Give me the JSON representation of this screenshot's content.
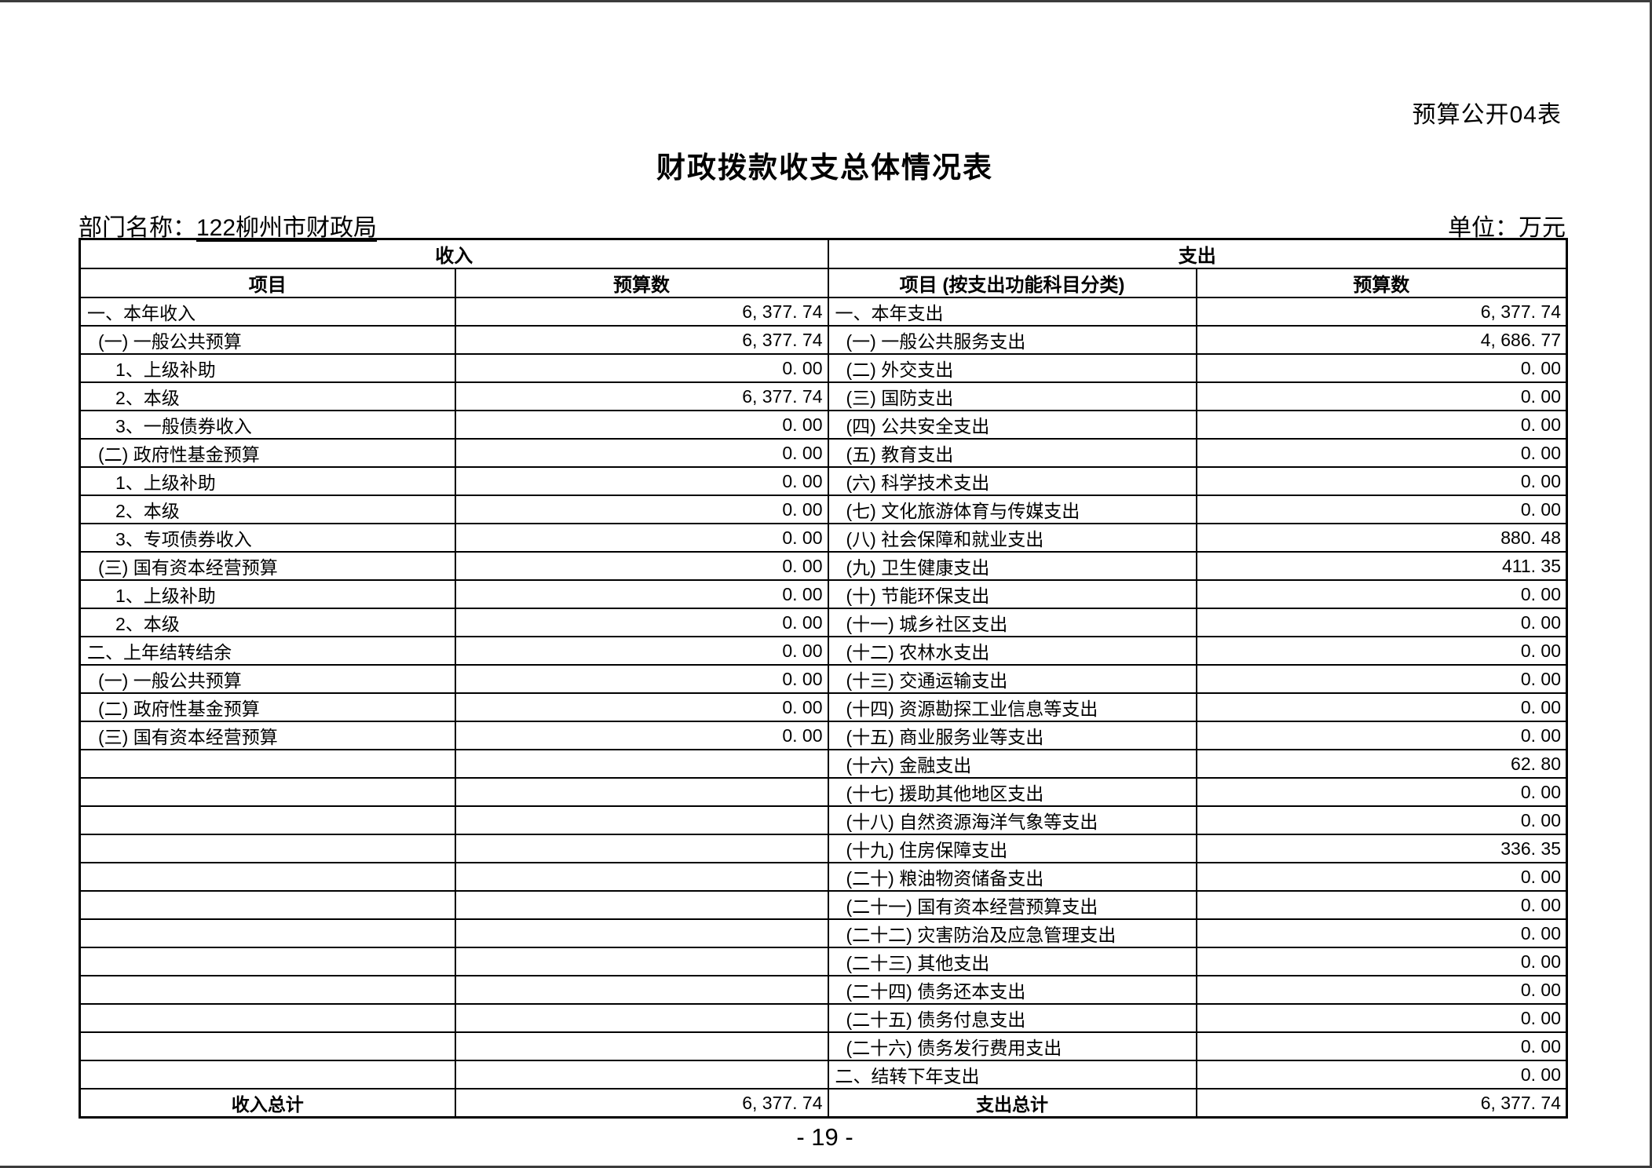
{
  "page": {
    "form_label": "预算公开04表",
    "title": "财政拨款收支总体情况表",
    "department_label": "部门名称：",
    "department_value": "122柳州市财政局",
    "unit_label": "单位：万元",
    "page_number": "- 19 -"
  },
  "table": {
    "income": {
      "section_header": "收入",
      "columns": {
        "item": "项目",
        "budget": "预算数"
      },
      "rows": [
        {
          "label": "一、本年收入",
          "indent": 0,
          "value": "6, 377. 74"
        },
        {
          "label": "(一) 一般公共预算",
          "indent": 1,
          "value": "6, 377. 74"
        },
        {
          "label": "1、上级补助",
          "indent": 2,
          "value": "0. 00"
        },
        {
          "label": "2、本级",
          "indent": 2,
          "value": "6, 377. 74"
        },
        {
          "label": "3、一般债券收入",
          "indent": 2,
          "value": "0. 00"
        },
        {
          "label": "(二) 政府性基金预算",
          "indent": 1,
          "value": "0. 00"
        },
        {
          "label": "1、上级补助",
          "indent": 2,
          "value": "0. 00"
        },
        {
          "label": "2、本级",
          "indent": 2,
          "value": "0. 00"
        },
        {
          "label": "3、专项债券收入",
          "indent": 2,
          "value": "0. 00"
        },
        {
          "label": "(三) 国有资本经营预算",
          "indent": 1,
          "value": "0. 00"
        },
        {
          "label": "1、上级补助",
          "indent": 2,
          "value": "0. 00"
        },
        {
          "label": "2、本级",
          "indent": 2,
          "value": "0. 00"
        },
        {
          "label": "二、上年结转结余",
          "indent": 0,
          "value": "0. 00"
        },
        {
          "label": "(一) 一般公共预算",
          "indent": 1,
          "value": "0. 00"
        },
        {
          "label": "(二) 政府性基金预算",
          "indent": 1,
          "value": "0. 00"
        },
        {
          "label": "(三) 国有资本经营预算",
          "indent": 1,
          "value": "0. 00"
        }
      ],
      "empty_row_count": 12,
      "total": {
        "label": "收入总计",
        "value": "6, 377. 74"
      }
    },
    "expenditure": {
      "section_header": "支出",
      "columns": {
        "item": "项目 (按支出功能科目分类)",
        "budget": "预算数"
      },
      "rows": [
        {
          "label": "一、本年支出",
          "indent": 0,
          "value": "6, 377. 74"
        },
        {
          "label": "(一) 一般公共服务支出",
          "indent": 1,
          "value": "4, 686. 77"
        },
        {
          "label": "(二) 外交支出",
          "indent": 1,
          "value": "0. 00"
        },
        {
          "label": "(三) 国防支出",
          "indent": 1,
          "value": "0. 00"
        },
        {
          "label": "(四) 公共安全支出",
          "indent": 1,
          "value": "0. 00"
        },
        {
          "label": "(五) 教育支出",
          "indent": 1,
          "value": "0. 00"
        },
        {
          "label": "(六) 科学技术支出",
          "indent": 1,
          "value": "0. 00"
        },
        {
          "label": "(七) 文化旅游体育与传媒支出",
          "indent": 1,
          "value": "0. 00"
        },
        {
          "label": "(八) 社会保障和就业支出",
          "indent": 1,
          "value": "880. 48"
        },
        {
          "label": "(九) 卫生健康支出",
          "indent": 1,
          "value": "411. 35"
        },
        {
          "label": "(十) 节能环保支出",
          "indent": 1,
          "value": "0. 00"
        },
        {
          "label": "(十一) 城乡社区支出",
          "indent": 1,
          "value": "0. 00"
        },
        {
          "label": "(十二) 农林水支出",
          "indent": 1,
          "value": "0. 00"
        },
        {
          "label": "(十三) 交通运输支出",
          "indent": 1,
          "value": "0. 00"
        },
        {
          "label": "(十四) 资源勘探工业信息等支出",
          "indent": 1,
          "value": "0. 00"
        },
        {
          "label": "(十五) 商业服务业等支出",
          "indent": 1,
          "value": "0. 00"
        },
        {
          "label": "(十六) 金融支出",
          "indent": 1,
          "value": "62. 80"
        },
        {
          "label": "(十七) 援助其他地区支出",
          "indent": 1,
          "value": "0. 00"
        },
        {
          "label": "(十八) 自然资源海洋气象等支出",
          "indent": 1,
          "value": "0. 00"
        },
        {
          "label": "(十九) 住房保障支出",
          "indent": 1,
          "value": "336. 35"
        },
        {
          "label": "(二十) 粮油物资储备支出",
          "indent": 1,
          "value": "0. 00"
        },
        {
          "label": "(二十一) 国有资本经营预算支出",
          "indent": 1,
          "value": "0. 00"
        },
        {
          "label": "(二十二) 灾害防治及应急管理支出",
          "indent": 1,
          "value": "0. 00"
        },
        {
          "label": "(二十三) 其他支出",
          "indent": 1,
          "value": "0. 00"
        },
        {
          "label": "(二十四) 债务还本支出",
          "indent": 1,
          "value": "0. 00"
        },
        {
          "label": "(二十五) 债务付息支出",
          "indent": 1,
          "value": "0. 00"
        },
        {
          "label": "(二十六) 债务发行费用支出",
          "indent": 1,
          "value": "0. 00"
        },
        {
          "label": "二、结转下年支出",
          "indent": 0,
          "value": "0. 00"
        }
      ],
      "total": {
        "label": "支出总计",
        "value": "6, 377. 74"
      }
    }
  }
}
